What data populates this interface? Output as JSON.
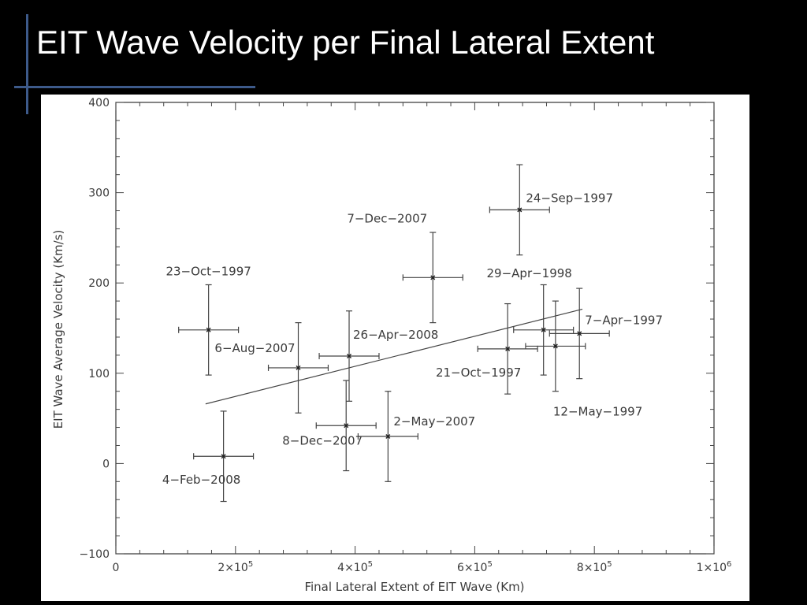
{
  "slide": {
    "title": "EIT Wave Velocity per Final Lateral Extent",
    "background_color": "#000000",
    "title_color": "#ffffff",
    "accent_color": "#3d5a8a"
  },
  "chart_data": {
    "type": "scatter",
    "title": "",
    "xlabel": "Final Lateral Extent of EIT Wave (Km)",
    "ylabel": "EIT Wave Average Velocity (Km/s)",
    "xlim": [
      0,
      1000000
    ],
    "ylim": [
      -100,
      400
    ],
    "grid": false,
    "x_ticks": [
      {
        "value": 0,
        "mant": "0",
        "exp": ""
      },
      {
        "value": 200000,
        "mant": "2×10",
        "exp": "5"
      },
      {
        "value": 400000,
        "mant": "4×10",
        "exp": "5"
      },
      {
        "value": 600000,
        "mant": "6×10",
        "exp": "5"
      },
      {
        "value": 800000,
        "mant": "8×10",
        "exp": "5"
      },
      {
        "value": 1000000,
        "mant": "1×10",
        "exp": "6"
      }
    ],
    "y_ticks": [
      "−100",
      "0",
      "100",
      "200",
      "300",
      "400"
    ],
    "y_tick_values": [
      -100,
      0,
      100,
      200,
      300,
      400
    ],
    "points": [
      {
        "label": "4−Feb−2008",
        "x": 180000,
        "y": 8,
        "xerr": 50000,
        "yerr": 50,
        "label_pos": "below-left"
      },
      {
        "label": "23−Oct−1997",
        "x": 155000,
        "y": 148,
        "xerr": 50000,
        "yerr": 50,
        "label_pos": "above"
      },
      {
        "label": "6−Aug−2007",
        "x": 305000,
        "y": 106,
        "xerr": 50000,
        "yerr": 50,
        "label_pos": "upper-left"
      },
      {
        "label": "8−Dec−2007",
        "x": 385000,
        "y": 42,
        "xerr": 50000,
        "yerr": 50,
        "label_pos": "below-left"
      },
      {
        "label": "26−Apr−2008",
        "x": 390000,
        "y": 119,
        "xerr": 50000,
        "yerr": 50,
        "label_pos": "upper-right"
      },
      {
        "label": "2−May−2007",
        "x": 455000,
        "y": 30,
        "xerr": 50000,
        "yerr": 50,
        "label_pos": "upper-right"
      },
      {
        "label": "7−Dec−2007",
        "x": 530000,
        "y": 206,
        "xerr": 50000,
        "yerr": 50,
        "label_pos": "above-left"
      },
      {
        "label": "21−Oct−1997",
        "x": 655000,
        "y": 127,
        "xerr": 50000,
        "yerr": 50,
        "label_pos": "below-left"
      },
      {
        "label": "24−Sep−1997",
        "x": 675000,
        "y": 281,
        "xerr": 50000,
        "yerr": 50,
        "label_pos": "upper-right"
      },
      {
        "label": "29−Apr−1998",
        "x": 715000,
        "y": 148,
        "xerr": 50000,
        "yerr": 50,
        "label_pos": "above"
      },
      {
        "label": "12−May−1997",
        "x": 735000,
        "y": 130,
        "xerr": 50000,
        "yerr": 50,
        "label_pos": "below-right"
      },
      {
        "label": "7−Apr−1997",
        "x": 775000,
        "y": 144,
        "xerr": 50000,
        "yerr": 50,
        "label_pos": "upper-right"
      }
    ],
    "fit_line": {
      "x": [
        150000,
        780000
      ],
      "y": [
        66,
        171
      ]
    }
  }
}
